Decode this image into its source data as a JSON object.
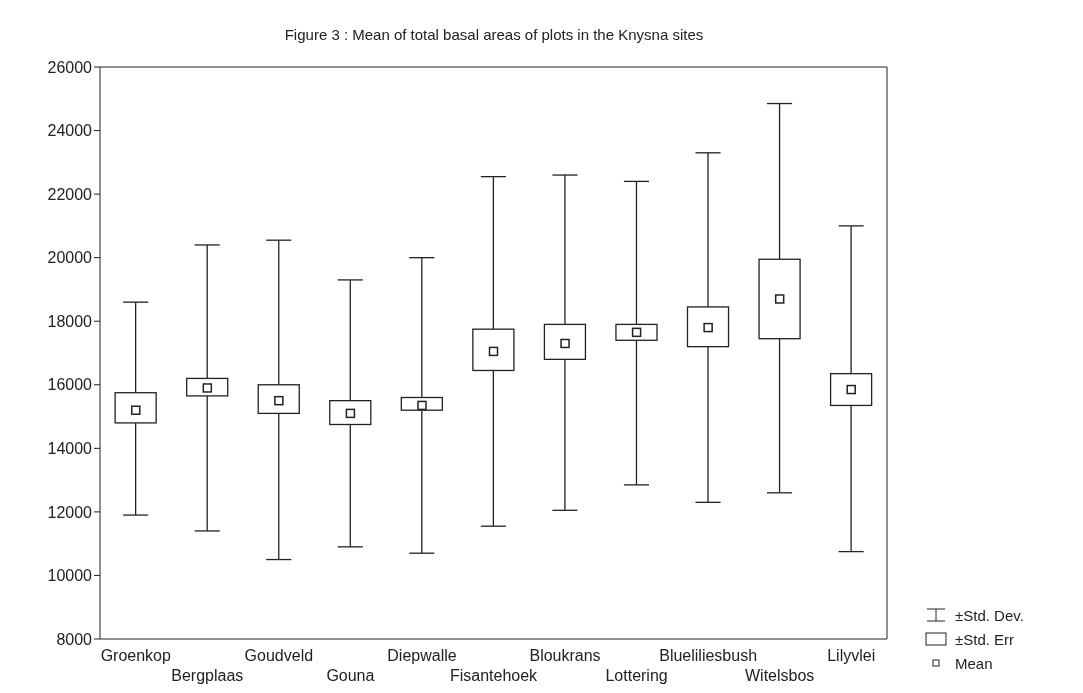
{
  "chart_data": {
    "type": "box",
    "title": "Figure 3 : Mean of total basal areas of plots in the Knysna sites",
    "categories": [
      "Groenkop",
      "Bergplaas",
      "Goudveld",
      "Gouna",
      "Diepwalle",
      "Fisantehoek",
      "Bloukrans",
      "Lottering",
      "Blueliliesbush",
      "Witelsbos",
      "Lilyvlei"
    ],
    "boxes": [
      {
        "low": 11900,
        "q1": 14800,
        "q3": 15750,
        "high": 18600,
        "mean": 15200
      },
      {
        "low": 11400,
        "q1": 15650,
        "q3": 16200,
        "high": 20400,
        "mean": 15900
      },
      {
        "low": 10500,
        "q1": 15100,
        "q3": 16000,
        "high": 20550,
        "mean": 15500
      },
      {
        "low": 10900,
        "q1": 14750,
        "q3": 15500,
        "high": 19300,
        "mean": 15100
      },
      {
        "low": 10700,
        "q1": 15200,
        "q3": 15600,
        "high": 20000,
        "mean": 15350
      },
      {
        "low": 11550,
        "q1": 16450,
        "q3": 17750,
        "high": 22550,
        "mean": 17050
      },
      {
        "low": 12050,
        "q1": 16800,
        "q3": 17900,
        "high": 22600,
        "mean": 17300
      },
      {
        "low": 12850,
        "q1": 17400,
        "q3": 17900,
        "high": 22400,
        "mean": 17650
      },
      {
        "low": 12300,
        "q1": 17200,
        "q3": 18450,
        "high": 23300,
        "mean": 17800
      },
      {
        "low": 12600,
        "q1": 17450,
        "q3": 19950,
        "high": 24850,
        "mean": 18700
      },
      {
        "low": 10750,
        "q1": 15350,
        "q3": 16350,
        "high": 21000,
        "mean": 15850
      }
    ],
    "color": "#222222",
    "ylim": [
      8000,
      26000
    ],
    "yticks": [
      8000,
      10000,
      12000,
      14000,
      16000,
      18000,
      20000,
      22000,
      24000,
      26000
    ],
    "marker": "square",
    "annotations": [
      "±Std. Dev.",
      "±Std. Err",
      "Mean"
    ]
  }
}
